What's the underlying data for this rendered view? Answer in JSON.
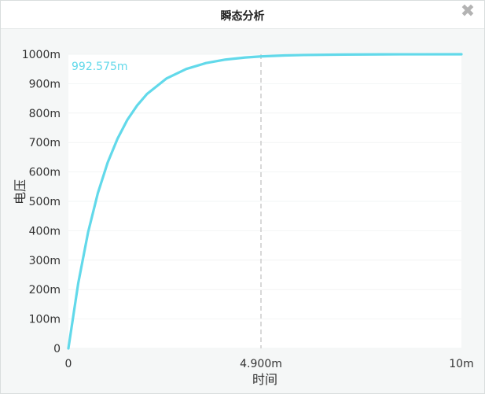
{
  "window": {
    "title": "瞬态分析"
  },
  "icons": {
    "close": "close-x-icon"
  },
  "colors": {
    "series": "#62d9ea",
    "plot_bg": "#ffffff",
    "panel_bg": "#f5f7f7",
    "cursor": "#cccccc"
  },
  "chart_data": {
    "type": "line",
    "xlabel": "时间",
    "ylabel": "电压",
    "xlim": [
      0,
      10
    ],
    "ylim": [
      0,
      1000
    ],
    "x_unit": "ms",
    "y_unit": "mV",
    "x_tick_labels": [
      "0",
      "4.900m",
      "10m"
    ],
    "x_tick_values": [
      0,
      4.9,
      10
    ],
    "y_tick_labels": [
      "0",
      "100m",
      "200m",
      "300m",
      "400m",
      "500m",
      "600m",
      "700m",
      "800m",
      "900m",
      "1000m"
    ],
    "y_tick_values": [
      0,
      100,
      200,
      300,
      400,
      500,
      600,
      700,
      800,
      900,
      1000
    ],
    "grid": true,
    "cursor": {
      "x": 4.9,
      "readout": "992.575m"
    },
    "series": [
      {
        "x": [
          0,
          0.25,
          0.5,
          0.75,
          1,
          1.25,
          1.5,
          1.75,
          2,
          2.5,
          3,
          3.5,
          4,
          4.5,
          4.9,
          5.5,
          6,
          7,
          8,
          9,
          10
        ],
        "y": [
          0,
          221,
          394,
          528,
          632,
          713,
          777,
          826,
          865,
          918,
          950,
          970,
          982,
          989,
          992.6,
          995.9,
          997.5,
          999.1,
          999.7,
          999.9,
          1000
        ]
      }
    ]
  }
}
